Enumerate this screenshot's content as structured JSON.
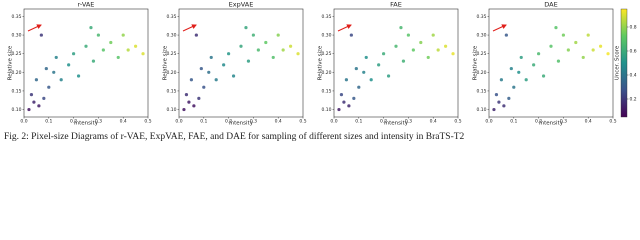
{
  "caption": "Fig. 2: Pixel-size Diagrams of r-VAE, ExpVAE, FAE, and DAE for sampling of different sizes and intensity in BraTS-T2",
  "chart_data": [
    {
      "type": "scatter",
      "title": "r-VAE",
      "xlabel": "Intensity",
      "ylabel": "Relative size",
      "xlim": [
        0,
        0.5
      ],
      "ylim": [
        0.08,
        0.37
      ],
      "xticks": [
        {
          "value": 0,
          "label": "0.0"
        },
        {
          "value": 0.1,
          "label": "0.1"
        },
        {
          "value": 0.2,
          "label": "0.2"
        },
        {
          "value": 0.3,
          "label": "0.3"
        },
        {
          "value": 0.4,
          "label": "0.4"
        },
        {
          "value": 0.5,
          "label": "0.5"
        }
      ],
      "yticks": [
        {
          "value": 0.1,
          "label": "0.10"
        },
        0.15,
        {
          "value": 0.2,
          "label": "0.20"
        },
        0.25,
        {
          "value": 0.3,
          "label": "0.30"
        },
        0.35
      ],
      "x": [
        0.02,
        0.04,
        0.06,
        0.03,
        0.08,
        0.1,
        0.05,
        0.12,
        0.15,
        0.18,
        0.2,
        0.22,
        0.25,
        0.28,
        0.3,
        0.32,
        0.35,
        0.38,
        0.4,
        0.42,
        0.45,
        0.48,
        0.13,
        0.09,
        0.27,
        0.07
      ],
      "values": [
        0.1,
        0.12,
        0.11,
        0.14,
        0.13,
        0.16,
        0.18,
        0.2,
        0.18,
        0.22,
        0.25,
        0.19,
        0.27,
        0.23,
        0.3,
        0.26,
        0.28,
        0.24,
        0.3,
        0.26,
        0.27,
        0.25,
        0.24,
        0.21,
        0.32,
        0.3
      ],
      "scores": [
        0.1,
        0.15,
        0.12,
        0.2,
        0.25,
        0.3,
        0.35,
        0.4,
        0.45,
        0.5,
        0.55,
        0.5,
        0.6,
        0.6,
        0.65,
        0.7,
        0.75,
        0.7,
        0.8,
        0.85,
        0.9,
        0.9,
        0.45,
        0.35,
        0.6,
        0.2
      ]
    },
    {
      "type": "scatter",
      "title": "ExpVAE",
      "xlabel": "Intensity",
      "ylabel": "Relative size",
      "xlim": [
        0,
        0.5
      ],
      "ylim": [
        0.08,
        0.37
      ],
      "xticks": [
        {
          "value": 0,
          "label": "0.0"
        },
        {
          "value": 0.1,
          "label": "0.1"
        },
        {
          "value": 0.2,
          "label": "0.2"
        },
        {
          "value": 0.3,
          "label": "0.3"
        },
        {
          "value": 0.4,
          "label": "0.4"
        },
        {
          "value": 0.5,
          "label": "0.5"
        }
      ],
      "yticks": [
        {
          "value": 0.1,
          "label": "0.10"
        },
        0.15,
        {
          "value": 0.2,
          "label": "0.20"
        },
        0.25,
        {
          "value": 0.3,
          "label": "0.30"
        },
        0.35
      ],
      "x": [
        0.02,
        0.04,
        0.06,
        0.03,
        0.08,
        0.1,
        0.05,
        0.12,
        0.15,
        0.18,
        0.2,
        0.22,
        0.25,
        0.28,
        0.3,
        0.32,
        0.35,
        0.38,
        0.4,
        0.42,
        0.45,
        0.48,
        0.13,
        0.09,
        0.27,
        0.07
      ],
      "values": [
        0.1,
        0.12,
        0.11,
        0.14,
        0.13,
        0.16,
        0.18,
        0.2,
        0.18,
        0.22,
        0.25,
        0.19,
        0.27,
        0.23,
        0.3,
        0.26,
        0.28,
        0.24,
        0.3,
        0.26,
        0.27,
        0.25,
        0.24,
        0.21,
        0.32,
        0.3
      ],
      "scores": [
        0.1,
        0.12,
        0.1,
        0.18,
        0.2,
        0.28,
        0.3,
        0.38,
        0.42,
        0.48,
        0.52,
        0.46,
        0.58,
        0.55,
        0.62,
        0.66,
        0.72,
        0.68,
        0.78,
        0.82,
        0.88,
        0.9,
        0.4,
        0.3,
        0.58,
        0.18
      ]
    },
    {
      "type": "scatter",
      "title": "FAE",
      "xlabel": "Intensity",
      "ylabel": "Relative size",
      "xlim": [
        0,
        0.5
      ],
      "ylim": [
        0.08,
        0.37
      ],
      "xticks": [
        {
          "value": 0,
          "label": "0.0"
        },
        {
          "value": 0.1,
          "label": "0.1"
        },
        {
          "value": 0.2,
          "label": "0.2"
        },
        {
          "value": 0.3,
          "label": "0.3"
        },
        {
          "value": 0.4,
          "label": "0.4"
        },
        {
          "value": 0.5,
          "label": "0.5"
        }
      ],
      "yticks": [
        {
          "value": 0.1,
          "label": "0.10"
        },
        0.15,
        {
          "value": 0.2,
          "label": "0.20"
        },
        0.25,
        {
          "value": 0.3,
          "label": "0.30"
        },
        0.35
      ],
      "x": [
        0.02,
        0.04,
        0.06,
        0.03,
        0.08,
        0.1,
        0.05,
        0.12,
        0.15,
        0.18,
        0.2,
        0.22,
        0.25,
        0.28,
        0.3,
        0.32,
        0.35,
        0.38,
        0.4,
        0.42,
        0.45,
        0.48,
        0.13,
        0.09,
        0.27,
        0.07
      ],
      "values": [
        0.1,
        0.12,
        0.11,
        0.14,
        0.13,
        0.16,
        0.18,
        0.2,
        0.18,
        0.22,
        0.25,
        0.19,
        0.27,
        0.23,
        0.3,
        0.26,
        0.28,
        0.24,
        0.3,
        0.26,
        0.27,
        0.25,
        0.24,
        0.21,
        0.32,
        0.3
      ],
      "scores": [
        0.12,
        0.18,
        0.15,
        0.25,
        0.3,
        0.35,
        0.4,
        0.45,
        0.5,
        0.55,
        0.6,
        0.55,
        0.65,
        0.62,
        0.7,
        0.72,
        0.78,
        0.75,
        0.82,
        0.86,
        0.9,
        0.92,
        0.5,
        0.4,
        0.65,
        0.25
      ]
    },
    {
      "type": "scatter",
      "title": "DAE",
      "xlabel": "Intensity",
      "ylabel": "Relative size",
      "xlim": [
        0,
        0.5
      ],
      "ylim": [
        0.08,
        0.37
      ],
      "xticks": [
        {
          "value": 0,
          "label": "0.0"
        },
        {
          "value": 0.1,
          "label": "0.1"
        },
        {
          "value": 0.2,
          "label": "0.2"
        },
        {
          "value": 0.3,
          "label": "0.3"
        },
        {
          "value": 0.4,
          "label": "0.4"
        },
        {
          "value": 0.5,
          "label": "0.5"
        }
      ],
      "yticks": [
        {
          "value": 0.1,
          "label": "0.10"
        },
        0.15,
        {
          "value": 0.2,
          "label": "0.20"
        },
        0.25,
        {
          "value": 0.3,
          "label": "0.30"
        },
        0.35
      ],
      "x": [
        0.02,
        0.04,
        0.06,
        0.03,
        0.08,
        0.1,
        0.05,
        0.12,
        0.15,
        0.18,
        0.2,
        0.22,
        0.25,
        0.28,
        0.3,
        0.32,
        0.35,
        0.38,
        0.4,
        0.42,
        0.45,
        0.48,
        0.13,
        0.09,
        0.27,
        0.07
      ],
      "values": [
        0.1,
        0.12,
        0.11,
        0.14,
        0.13,
        0.16,
        0.18,
        0.2,
        0.18,
        0.22,
        0.25,
        0.19,
        0.27,
        0.23,
        0.3,
        0.26,
        0.28,
        0.24,
        0.3,
        0.26,
        0.27,
        0.25,
        0.24,
        0.21,
        0.32,
        0.3
      ],
      "scores": [
        0.15,
        0.2,
        0.18,
        0.28,
        0.32,
        0.4,
        0.42,
        0.5,
        0.55,
        0.6,
        0.66,
        0.6,
        0.7,
        0.68,
        0.75,
        0.78,
        0.82,
        0.8,
        0.86,
        0.88,
        0.92,
        0.94,
        0.55,
        0.45,
        0.7,
        0.3
      ],
      "colorbar_label": "Uncer. Score",
      "clim": [
        0.05,
        0.95
      ],
      "cticks": [
        0.2,
        0.4,
        0.6,
        0.8
      ]
    }
  ]
}
